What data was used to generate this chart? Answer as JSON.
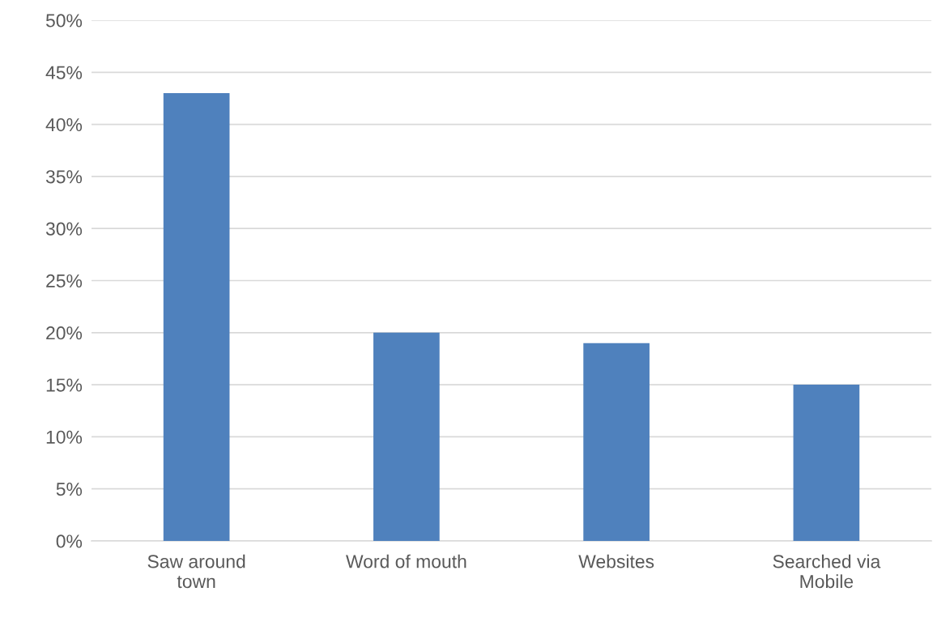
{
  "chart_data": {
    "type": "bar",
    "categories": [
      "Saw around\ntown",
      "Word of mouth",
      "Websites",
      "Searched via\nMobile"
    ],
    "values": [
      43,
      20,
      19,
      15
    ],
    "color": "#4f81bd",
    "ylim": [
      0,
      50
    ],
    "yticks": [
      {
        "value": 0,
        "label": "0%"
      },
      {
        "value": 5,
        "label": "5%"
      },
      {
        "value": 10,
        "label": "10%"
      },
      {
        "value": 15,
        "label": "15%"
      },
      {
        "value": 20,
        "label": "20%"
      },
      {
        "value": 25,
        "label": "25%"
      },
      {
        "value": 30,
        "label": "30%"
      },
      {
        "value": 35,
        "label": "35%"
      },
      {
        "value": 40,
        "label": "40%"
      },
      {
        "value": 45,
        "label": "45%"
      },
      {
        "value": 50,
        "label": "50%"
      }
    ],
    "grid": "y"
  }
}
